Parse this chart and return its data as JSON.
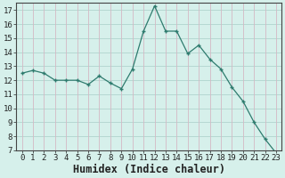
{
  "x": [
    0,
    1,
    2,
    3,
    4,
    5,
    6,
    7,
    8,
    9,
    10,
    11,
    12,
    13,
    14,
    15,
    16,
    17,
    18,
    19,
    20,
    21,
    22,
    23
  ],
  "y": [
    12.5,
    12.7,
    12.5,
    12.0,
    12.0,
    12.0,
    11.7,
    12.3,
    11.8,
    11.4,
    12.8,
    15.5,
    17.3,
    15.5,
    15.5,
    13.9,
    14.5,
    13.5,
    12.8,
    11.5,
    10.5,
    9.0,
    7.8,
    6.8
  ],
  "line_color": "#2e7b6e",
  "marker": "+",
  "background_color": "#d6f0eb",
  "grid_color_major": "#c8b8c8",
  "grid_color_minor": "#b8d8d4",
  "axis_line_color": "#444444",
  "xlabel": "Humidex (Indice chaleur)",
  "ylim": [
    7,
    17.5
  ],
  "xlim": [
    -0.5,
    23.5
  ],
  "yticks": [
    7,
    8,
    9,
    10,
    11,
    12,
    13,
    14,
    15,
    16,
    17
  ],
  "xticks": [
    0,
    1,
    2,
    3,
    4,
    5,
    6,
    7,
    8,
    9,
    10,
    11,
    12,
    13,
    14,
    15,
    16,
    17,
    18,
    19,
    20,
    21,
    22,
    23
  ],
  "tick_fontsize": 6.5,
  "label_fontsize": 8.5,
  "font_color": "#222222"
}
